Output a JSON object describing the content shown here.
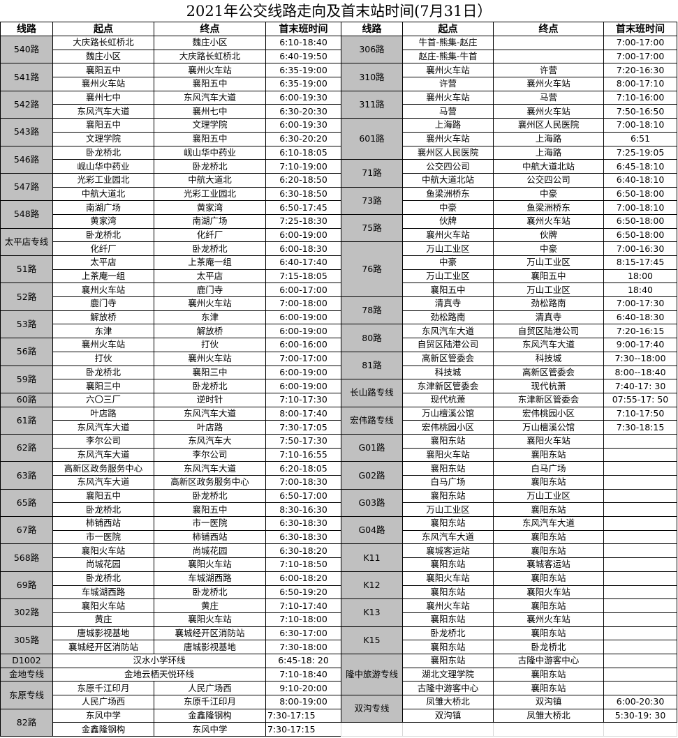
{
  "title": "2021年公交线路走向及首末站时间(7月31日）",
  "headers": [
    "线路",
    "起点",
    "终点",
    "首末班时间"
  ],
  "colors": {
    "route_cell_bg": "#c0c0c0",
    "border": "#000000"
  },
  "left_table": [
    {
      "route": "540路",
      "rows": [
        [
          "大庆路长虹桥北",
          "魏庄小区",
          "6:10-18:40"
        ],
        [
          "魏庄小区",
          "大庆路长虹桥北",
          "6:40-19:50"
        ]
      ]
    },
    {
      "route": "541路",
      "rows": [
        [
          "襄阳五中",
          "襄州火车站",
          "6:35-19:00"
        ],
        [
          "襄州火车站",
          "襄阳五中",
          "6:35-19:00"
        ]
      ]
    },
    {
      "route": "542路",
      "rows": [
        [
          "襄州七中",
          "东风汽车大道",
          "6:00-19:30"
        ],
        [
          "东风汽车大道",
          "襄州七中",
          "6:30-20:30"
        ]
      ]
    },
    {
      "route": "543路",
      "rows": [
        [
          "襄阳五中",
          "文理学院",
          "6:00-19:30"
        ],
        [
          "文理学院",
          "襄阳五中",
          "6:30-20:20"
        ]
      ]
    },
    {
      "route": "546路",
      "rows": [
        [
          "卧龙桥北",
          "岘山华中药业",
          "6:10-18:05"
        ],
        [
          "岘山华中药业",
          "卧龙桥北",
          "7:10-19:00"
        ]
      ]
    },
    {
      "route": "547路",
      "rows": [
        [
          "光彩工业园北",
          "中航大道北",
          "6:20-18:50"
        ],
        [
          "中航大道北",
          "光彩工业园北",
          "6:30-18:50"
        ]
      ]
    },
    {
      "route": "548路",
      "rows": [
        [
          "南湖广场",
          "黄家湾",
          "6:50-17:45"
        ],
        [
          "黄家湾",
          "南湖广场",
          "7:25-18:30"
        ]
      ]
    },
    {
      "route": "太平店专线",
      "rows": [
        [
          "卧龙桥北",
          "化纤厂",
          "6:00-19:00"
        ],
        [
          "化纤厂",
          "卧龙桥北",
          "6:00-18:30"
        ]
      ]
    },
    {
      "route": "51路",
      "rows": [
        [
          "太平店",
          "上茶庵一组",
          "6:40-17:40"
        ],
        [
          "上茶庵一组",
          "太平店",
          "7:15-18:05"
        ]
      ]
    },
    {
      "route": "52路",
      "rows": [
        [
          "襄州火车站",
          "鹿门寺",
          "6:00-17:00"
        ],
        [
          "鹿门寺",
          "襄州火车站",
          "7:00-18:00"
        ]
      ]
    },
    {
      "route": "53路",
      "rows": [
        [
          "解放桥",
          "东津",
          "6:00-19:00"
        ],
        [
          "东津",
          "解放桥",
          "6:00-19:00"
        ]
      ]
    },
    {
      "route": "56路",
      "rows": [
        [
          "襄州火车站",
          "打伙",
          "6:00-16:00"
        ],
        [
          "打伙",
          "襄州火车站",
          "7:00-17:00"
        ]
      ]
    },
    {
      "route": "59路",
      "rows": [
        [
          "卧龙桥北",
          "襄阳三中",
          "6:00-19:00"
        ],
        [
          "襄阳三中",
          "卧龙桥北",
          "6:00-19:00"
        ]
      ]
    },
    {
      "route": "60路",
      "rows": [
        [
          "六〇三厂",
          "逆时针",
          "7:10-17:30"
        ]
      ]
    },
    {
      "route": "61路",
      "rows": [
        [
          "叶店路",
          "东风汽车大道",
          "8:00-17:40"
        ],
        [
          "东风汽车大道",
          "叶店路",
          "7:30-17:05"
        ]
      ]
    },
    {
      "route": "62路",
      "rows": [
        [
          "李尔公司",
          "东风汽车大",
          "7:50-17:30"
        ],
        [
          "东风汽车大道",
          "李尔公司",
          "7:10-16:55"
        ]
      ]
    },
    {
      "route": "63路",
      "rows": [
        [
          "高新区政务服务中心",
          "东风汽车大道",
          "6:20-18:05"
        ],
        [
          "东风汽车大道",
          "高新区政务服务中心",
          "7:00-18:30"
        ]
      ]
    },
    {
      "route": "65路",
      "rows": [
        [
          "襄阳五中",
          "卧龙桥北",
          "6:50-17:00"
        ],
        [
          "卧龙桥北",
          "襄阳五中",
          "8:30-16:30"
        ]
      ]
    },
    {
      "route": "67路",
      "rows": [
        [
          "柿铺西站",
          "市一医院",
          "6:30-18:30"
        ],
        [
          "市一医院",
          "柿铺西站",
          "6:30-18:30"
        ]
      ]
    },
    {
      "route": "568路",
      "rows": [
        [
          "襄阳火车站",
          "尚城花园",
          "6:30-18:20"
        ],
        [
          "尚城花园",
          "襄阳火车站",
          "7:10-18:50"
        ]
      ]
    },
    {
      "route": "69路",
      "rows": [
        [
          "卧龙桥北",
          "车城湖西路",
          "6:00-18:20"
        ],
        [
          "车城湖西路",
          "卧龙桥北",
          "6:50-19:20"
        ]
      ]
    },
    {
      "route": "302路",
      "rows": [
        [
          "襄阳火车站",
          "黄庄",
          "7:10-17:40"
        ],
        [
          "黄庄",
          "襄阳火车站",
          "7:10-18:00"
        ]
      ]
    },
    {
      "route": "305路",
      "rows": [
        [
          "唐城影视基地",
          "襄城经开区消防站",
          "6:30-17:00"
        ],
        [
          "襄城经开区消防站",
          "唐城影视基地",
          "7:30-18:00"
        ]
      ]
    },
    {
      "route": "D1002",
      "loop": "汉水小学环线",
      "time": "6:45-18: 20"
    },
    {
      "route": "金地专线",
      "loop": "金地云栖天悦环线",
      "time": "7:10-18:40"
    },
    {
      "route": "东原专线",
      "rows": [
        [
          "东原千江印月",
          "人民广场西",
          "9:10-20:00"
        ],
        [
          "人民广场西",
          "东原千江印月",
          "8:00-19:00"
        ]
      ]
    },
    {
      "route": "82路",
      "lefttime": true,
      "rows": [
        [
          "东风中学",
          "金鑫隆钢构",
          "7:30-17:15"
        ],
        [
          "金鑫隆钢构",
          "东风中学",
          "7:30-17:15"
        ]
      ]
    }
  ],
  "right_table": [
    {
      "route": "306路",
      "rows": [
        [
          "牛首-熊集-赵庄",
          "",
          "7:00-17:00"
        ],
        [
          "赵庄-熊集-牛首",
          "",
          "7:00-17:00"
        ]
      ]
    },
    {
      "route": "310路",
      "rows": [
        [
          "襄州火车站",
          "许营",
          "7:20-16:30"
        ],
        [
          "许营",
          "襄州火车站",
          "8:00-17:10"
        ]
      ]
    },
    {
      "route": "311路",
      "rows": [
        [
          "襄州火车站",
          "马营",
          "7:10-16:00"
        ],
        [
          "马营",
          "襄州火车站",
          "7:50-16:50"
        ]
      ]
    },
    {
      "route": "601路",
      "rows": [
        [
          "上海路",
          "襄州区人民医院",
          "7:00-18:10"
        ],
        [
          "襄州火车站",
          "上海路",
          "6:51"
        ],
        [
          "襄州区人民医院",
          "上海路",
          "7:25-19:05"
        ]
      ]
    },
    {
      "route": "71路",
      "rows": [
        [
          "公交四公司",
          "中航大道北站",
          "6:45-18:10"
        ],
        [
          "中航大道北站",
          "公交四公司",
          "6:40-18:10"
        ]
      ]
    },
    {
      "route": "73路",
      "rows": [
        [
          "鱼梁洲桥东",
          "中豪",
          "6:50-18:00"
        ],
        [
          "中豪",
          "鱼梁洲桥东",
          "7:00-18:10"
        ]
      ]
    },
    {
      "route": "75路",
      "rows": [
        [
          "伙牌",
          "襄州火车站",
          "6:50-18:00"
        ],
        [
          "襄州火车站",
          "伙牌",
          "6:50-18:00"
        ]
      ]
    },
    {
      "route": "76路",
      "rows": [
        [
          "万山工业区",
          "中豪",
          "7:00-16:30"
        ],
        [
          "中豪",
          "万山工业区",
          "8:15-17:45"
        ],
        [
          "万山工业区",
          "襄阳五中",
          "18:00"
        ],
        [
          "襄阳五中",
          "万山工业区",
          "18:40"
        ]
      ]
    },
    {
      "route": "78路",
      "rows": [
        [
          "清真寺",
          "劲松路南",
          "7:00-17:30"
        ],
        [
          "劲松路南",
          "清真寺",
          "6:40-18:30"
        ]
      ]
    },
    {
      "route": "80路",
      "rows": [
        [
          "东风汽车大道",
          "自贸区陆港公司",
          "7:20-16:15"
        ],
        [
          "自贸区陆港公司",
          "东风汽车大道",
          "9:00-17:40"
        ]
      ]
    },
    {
      "route": "81路",
      "rows": [
        [
          "高新区管委会",
          "科技城",
          "7:30--18:00"
        ],
        [
          "科技城",
          "高新区管委会",
          "8:00--18:40"
        ]
      ]
    },
    {
      "route": "长山路专线",
      "rows": [
        [
          "东津新区管委会",
          "现代杭萧",
          "7:40-17: 30"
        ],
        [
          "现代杭萧",
          "东津新区管委会",
          "07:55-17: 50"
        ]
      ]
    },
    {
      "route": "宏伟路专线",
      "rows": [
        [
          "万山檀溪公馆",
          "宏伟桃园小区",
          "7:10-17:50"
        ],
        [
          "宏伟桃园小区",
          "万山檀溪公馆",
          "7:30-18:15"
        ]
      ]
    },
    {
      "route": "G01路",
      "rows": [
        [
          "襄阳东站",
          "襄阳火车站",
          ""
        ],
        [
          "襄阳火车站",
          "襄阳东站",
          ""
        ]
      ]
    },
    {
      "route": "G02路",
      "rows": [
        [
          "襄阳东站",
          "白马广场",
          ""
        ],
        [
          "白马广场",
          "襄阳东站",
          ""
        ]
      ]
    },
    {
      "route": "G03路",
      "rows": [
        [
          "襄阳东站",
          "万山工业区",
          ""
        ],
        [
          "万山工业区",
          "襄阳东站",
          ""
        ]
      ]
    },
    {
      "route": "G04路",
      "rows": [
        [
          "襄阳东站",
          "东风汽车大道",
          ""
        ],
        [
          "东风汽车大道",
          "襄阳东站",
          ""
        ]
      ]
    },
    {
      "route": "K11",
      "rows": [
        [
          "襄城客运站",
          "襄阳东站",
          ""
        ],
        [
          "襄阳东站",
          "襄城客运站",
          ""
        ]
      ]
    },
    {
      "route": "K12",
      "rows": [
        [
          "襄阳火车站",
          "襄阳东站",
          ""
        ],
        [
          "襄阳东站",
          "襄阳火车站",
          ""
        ]
      ]
    },
    {
      "route": "K13",
      "rows": [
        [
          "襄州火车站",
          "襄阳东站",
          ""
        ],
        [
          "襄阳东站",
          "襄州火车站",
          ""
        ]
      ]
    },
    {
      "route": "K15",
      "rows": [
        [
          "卧龙桥北",
          "襄阳东站",
          ""
        ],
        [
          "襄阳东站",
          "卧龙桥北",
          ""
        ]
      ]
    },
    {
      "route": "隆中旅游专线",
      "rows": [
        [
          "襄阳东站",
          "古隆中游客中心",
          ""
        ],
        [
          "湖北文理学院",
          "襄阳东站",
          ""
        ],
        [
          "古隆中游客中心",
          "襄阳东站",
          ""
        ]
      ]
    },
    {
      "route": "双沟专线",
      "rows": [
        [
          "凤雏大桥北",
          "双沟镇",
          "6:00-20:30"
        ],
        [
          "双沟镇",
          "凤雏大桥北",
          "5:30-19: 30"
        ]
      ]
    }
  ]
}
